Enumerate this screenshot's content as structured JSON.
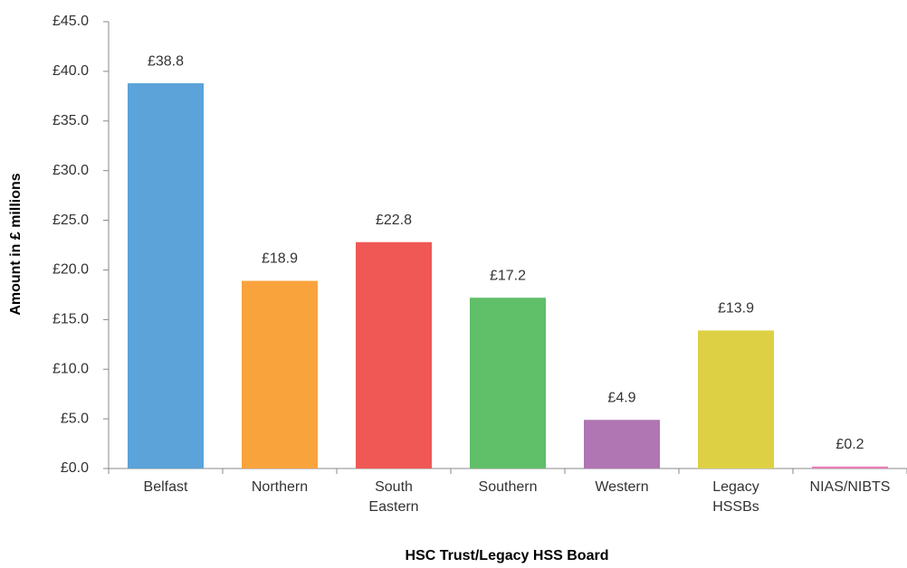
{
  "chart_data": {
    "type": "bar",
    "categories": [
      "Belfast",
      "Northern",
      "South\nEastern",
      "Southern",
      "Western",
      "Legacy\nHSSBs",
      "NIAS/NIBTS"
    ],
    "values": [
      38.8,
      18.9,
      22.8,
      17.2,
      4.9,
      13.9,
      0.2
    ],
    "value_labels": [
      "£38.8",
      "£18.9",
      "£22.8",
      "£17.2",
      "£4.9",
      "£13.9",
      "£0.2"
    ],
    "colors": [
      "#5ba3d9",
      "#f9a33d",
      "#ef5855",
      "#60bf69",
      "#b075b3",
      "#ddd044",
      "#e87fb5"
    ],
    "ylim": [
      0,
      45
    ],
    "yticks": [
      {
        "value": 0,
        "label": "£0.0"
      },
      {
        "value": 5,
        "label": "£5.0"
      },
      {
        "value": 10,
        "label": "£10.0"
      },
      {
        "value": 15,
        "label": "£15.0"
      },
      {
        "value": 20,
        "label": "£20.0"
      },
      {
        "value": 25,
        "label": "£25.0"
      },
      {
        "value": 30,
        "label": "£30.0"
      },
      {
        "value": 35,
        "label": "£35.0"
      },
      {
        "value": 40,
        "label": "£40.0"
      },
      {
        "value": 45,
        "label": "£45.0"
      }
    ],
    "ylabel": "Amount in £ millions",
    "xlabel": "HSC Trust/Legacy HSS Board"
  }
}
